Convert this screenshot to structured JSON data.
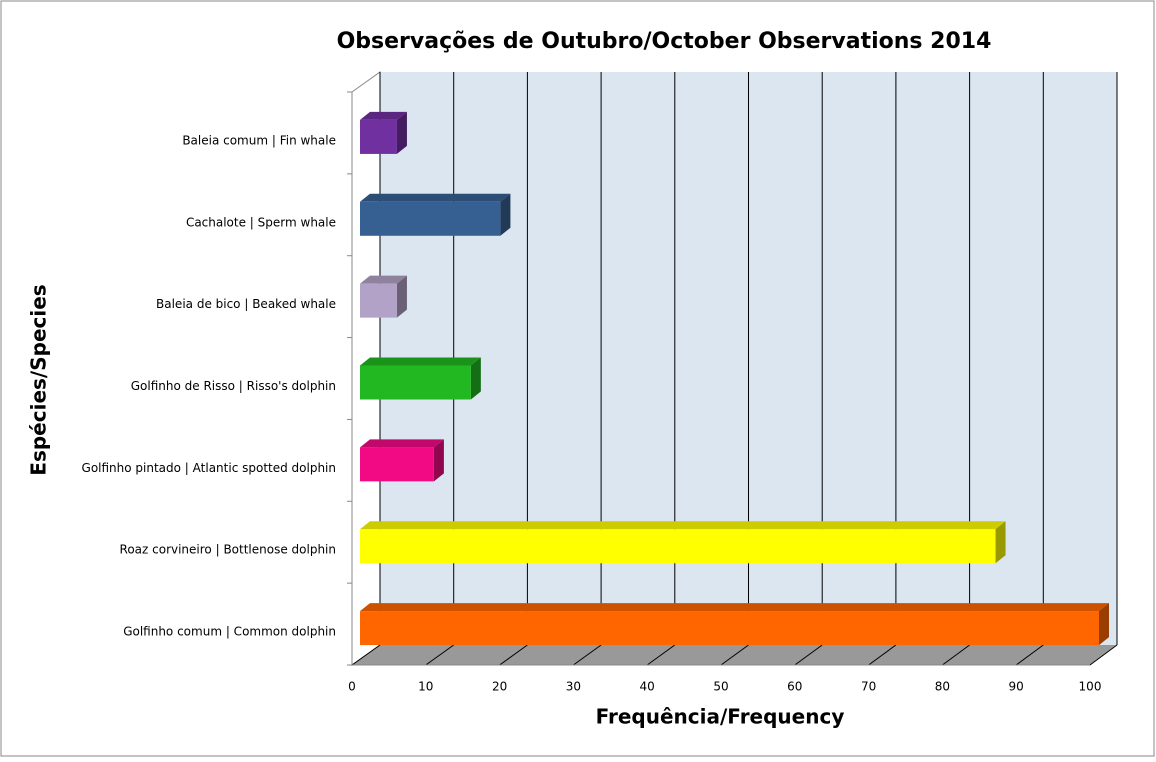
{
  "chart_data": {
    "type": "bar",
    "orientation": "horizontal",
    "title": "Observações de Outubro/October Observations 2014",
    "x_label": "Frequência/Frequency",
    "y_label": "Espécies/Species",
    "categories": [
      "Baleia comum | Fin whale",
      "Cachalote | Sperm whale",
      "Baleia de bico | Beaked whale",
      "Golfinho de Risso | Risso's dolphin",
      "Golfinho pintado | Atlantic spotted dolphin",
      "Roaz corvineiro | Bottlenose dolphin",
      "Golfinho comum | Common dolphin"
    ],
    "values": [
      5,
      19,
      5,
      15,
      10,
      86,
      100
    ],
    "colors": [
      "#7030a0",
      "#376092",
      "#b3a2c7",
      "#22b822",
      "#f20a84",
      "#ffff00",
      "#ff6600"
    ],
    "xlim": [
      0,
      100
    ],
    "xticks": [
      0,
      10,
      20,
      30,
      40,
      50,
      60,
      70,
      80,
      90,
      100
    ],
    "grid": true
  }
}
